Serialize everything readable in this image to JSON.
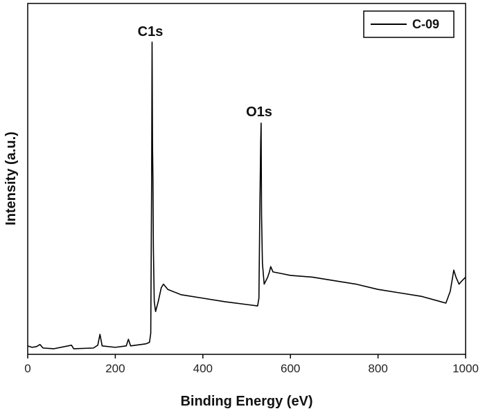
{
  "chart_data": {
    "type": "line",
    "xlabel": "Binding Energy (eV)",
    "ylabel": "Intensity (a.u.)",
    "annotations": [
      "C1s",
      "O1s"
    ],
    "x": [
      0,
      10,
      20,
      28,
      35,
      60,
      100,
      105,
      150,
      160,
      165,
      170,
      200,
      225,
      230,
      235,
      270,
      278,
      281,
      283,
      284,
      285,
      286,
      287,
      289,
      292,
      298,
      305,
      310,
      320,
      350,
      400,
      450,
      500,
      525,
      528,
      530,
      532,
      533,
      534,
      536,
      540,
      548,
      552,
      555,
      560,
      580,
      600,
      650,
      700,
      750,
      800,
      850,
      900,
      955,
      965,
      973,
      978,
      985,
      992,
      1000
    ],
    "series": [
      {
        "name": "C-09",
        "color": "#000000",
        "values": [
          2.4,
          2.0,
          2.2,
          2.8,
          1.8,
          1.6,
          2.6,
          1.6,
          1.8,
          2.6,
          5.7,
          2.4,
          2.0,
          2.4,
          4.3,
          2.4,
          3.0,
          3.4,
          6,
          50,
          89,
          60,
          50,
          30,
          15,
          12.2,
          15,
          19,
          20,
          18.5,
          17,
          16,
          15,
          14.2,
          13.8,
          16,
          40,
          60,
          65.9,
          40,
          26,
          20,
          22,
          23.5,
          25,
          23.5,
          23,
          22.5,
          22,
          21,
          20,
          18.5,
          17.5,
          16.5,
          14.6,
          18,
          24,
          22,
          20,
          21,
          22
        ]
      }
    ],
    "xlim": [
      0,
      1000
    ],
    "xticks": [
      0,
      200,
      400,
      600,
      800,
      1000
    ],
    "ylim": [
      0,
      100
    ],
    "legend": "upper right"
  }
}
